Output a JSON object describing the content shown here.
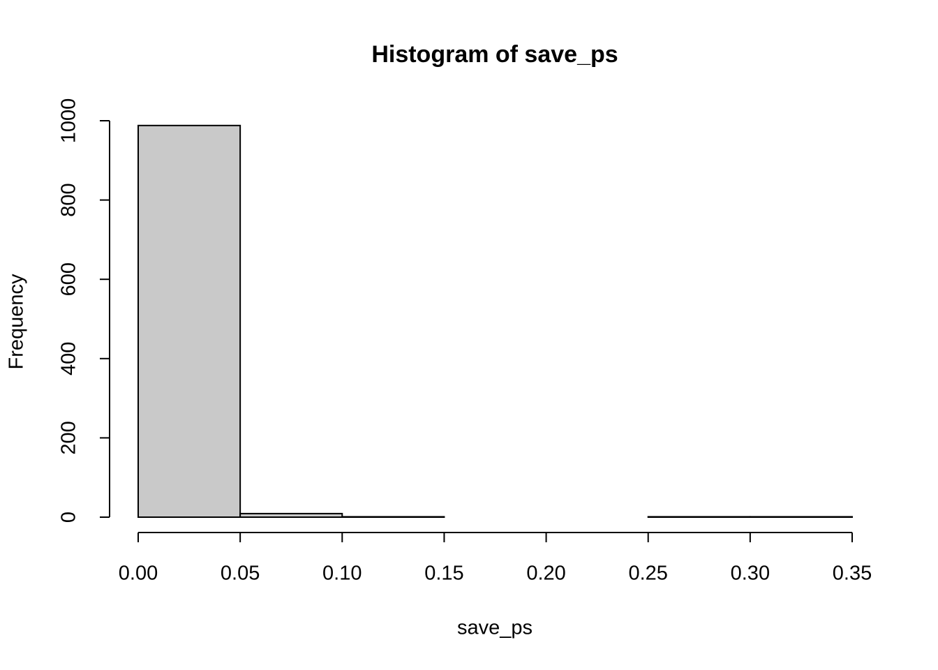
{
  "chart_data": {
    "type": "histogram",
    "title": "Histogram of save_ps",
    "x_label": "save_ps",
    "y_label": "Frequency",
    "bins": [
      0,
      0.05,
      0.1,
      0.15,
      0.2,
      0.25,
      0.3,
      0.35
    ],
    "values": [
      988,
      9,
      1,
      0,
      0,
      1,
      1
    ],
    "color": "#c9c9c9",
    "xlim": [
      0,
      0.35
    ],
    "xticks": [
      {
        "value": 0,
        "label": "0.00"
      },
      {
        "value": 0.05,
        "label": "0.05"
      },
      {
        "value": 0.1,
        "label": "0.10"
      },
      {
        "value": 0.15,
        "label": "0.15"
      },
      {
        "value": 0.2,
        "label": "0.20"
      },
      {
        "value": 0.25,
        "label": "0.25"
      },
      {
        "value": 0.3,
        "label": "0.30"
      },
      {
        "value": 0.35,
        "label": "0.35"
      }
    ],
    "ylim": [
      0,
      1000
    ],
    "yticks": [
      0,
      200,
      400,
      600,
      800,
      1000
    ]
  }
}
